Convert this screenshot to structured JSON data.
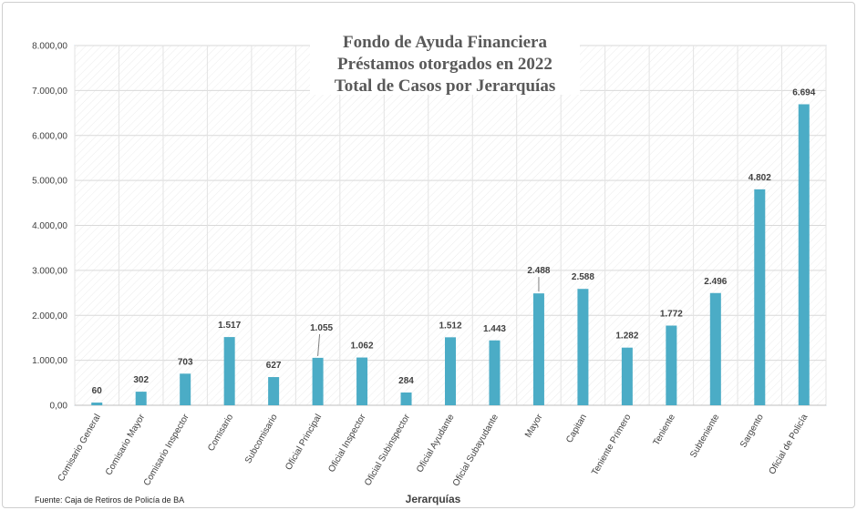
{
  "chart_data": {
    "type": "bar",
    "title_lines": [
      "Fondo de Ayuda Financiera",
      "Préstamos otorgados en 2022",
      "Total de Casos por Jerarquías"
    ],
    "xlabel": "Jerarquías",
    "ylabel": "",
    "ylim": [
      0,
      8000
    ],
    "yticks": [
      0,
      1000,
      2000,
      3000,
      4000,
      5000,
      6000,
      7000,
      8000
    ],
    "ytick_labels": [
      "0,00",
      "1.000,00",
      "2.000,00",
      "3.000,00",
      "4.000,00",
      "5.000,00",
      "6.000,00",
      "7.000,00",
      "8.000,00"
    ],
    "categories": [
      "Comisario General",
      "Comisario Mayor",
      "Comisario Inspector",
      "Comisario",
      "Subcomisario",
      "Oficial Principal",
      "Oficial Inspector",
      "Oficial Subinspector",
      "Oficial Ayudante",
      "Oficial Subayudante",
      "Mayor",
      "Capitan",
      "Teniente Primero",
      "Teniente",
      "Subteniente",
      "Sargento",
      "Oficial de Policía"
    ],
    "values": [
      60,
      302,
      703,
      1517,
      627,
      1055,
      1062,
      284,
      1512,
      1443,
      2488,
      2588,
      1282,
      1772,
      2496,
      4802,
      6694
    ],
    "data_labels": [
      "60",
      "302",
      "703",
      "1.517",
      "627",
      "1.055",
      "1.062",
      "284",
      "1.512",
      "1.443",
      "2.488",
      "2.588",
      "1.282",
      "1.772",
      "2.496",
      "4.802",
      "6.694"
    ],
    "grid": true,
    "bar_color": "#4bacc6",
    "source": "Fuente: Caja de Retiros de Policía de BA"
  }
}
